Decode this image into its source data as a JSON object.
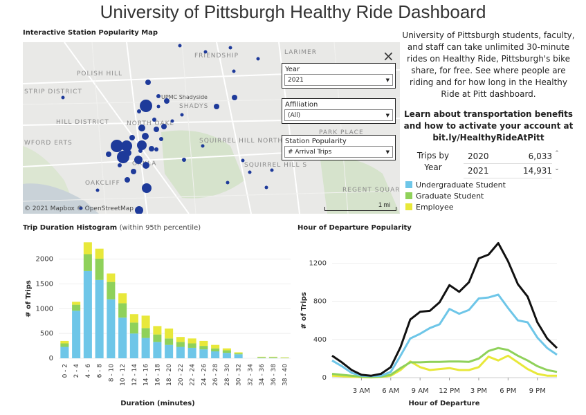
{
  "title": "University of Pittsburgh Healthy Ride Dashboard",
  "map": {
    "section_title": "Interactive Station Popularity Map",
    "place_labels": [
      "FRIENDSHIP",
      "LARIMER",
      "POLISH HILL",
      "STRIP DISTRICT",
      "UPMC Shadyside",
      "SHADYS",
      "HILL DISTRICT",
      "NORTH OAKL",
      "SQUIRREL HILL NORTH",
      "WFORD ERTS",
      "OAKLA",
      "OAKCLIFF",
      "PARK PLACE",
      "SQUIRREL HILL S",
      "REGENT SQUARE"
    ],
    "credit": "© 2021 Mapbox © OpenStreetMap",
    "scale_label": "1 mi",
    "close_icon": "×",
    "filters": [
      {
        "label": "Year",
        "value": "2021"
      },
      {
        "label": "Affiliation",
        "value": "(All)"
      },
      {
        "label": "Station Popularity",
        "value": "# Arrival Trips"
      }
    ]
  },
  "description": "University of Pittsburgh students, faculty, and staff can take unlimited 30-minute rides on Healthy Ride, Pittsburgh's bike share, for free. See where people are riding and for how long in the Healthy Ride at Pitt dashboard.",
  "learn_more": "Learn about transportation benefits and how to activate your account at bit.ly/HealthyRideAtPitt",
  "trips_by_year": {
    "label": "Trips by Year",
    "rows": [
      {
        "year": "2020",
        "value": "6,033"
      },
      {
        "year": "2021",
        "value": "14,931"
      }
    ]
  },
  "legend": [
    {
      "name": "Undergraduate Student",
      "color": "#6ec6e8"
    },
    {
      "name": "Graduate Student",
      "color": "#8fd15a"
    },
    {
      "name": "Employee",
      "color": "#e8e83a"
    }
  ],
  "chart_data": [
    {
      "type": "bar",
      "title": "Trip Duration Histogram",
      "subtitle": "(within 95th percentile)",
      "xlabel": "Duration (minutes)",
      "ylabel": "# of Trips",
      "ylim": [
        0,
        2400
      ],
      "yticks": [
        0,
        500,
        1000,
        1500,
        2000
      ],
      "categories": [
        "0 - 2",
        "2 - 4",
        "4 - 6",
        "6 - 8",
        "8 - 10",
        "10 - 12",
        "12 - 14",
        "14 - 16",
        "16 - 18",
        "18 - 20",
        "20 - 22",
        "22 - 24",
        "24 - 26",
        "26 - 28",
        "28 - 30",
        "30 - 32",
        "32 - 34",
        "34 - 36",
        "36 - 38",
        "38 - 40"
      ],
      "series": [
        {
          "name": "Undergraduate Student",
          "color": "#6ec6e8",
          "values": [
            230,
            960,
            1760,
            1580,
            1190,
            820,
            500,
            410,
            330,
            270,
            230,
            210,
            180,
            140,
            110,
            80,
            0,
            10,
            10,
            5
          ]
        },
        {
          "name": "Graduate Student",
          "color": "#8fd15a",
          "values": [
            70,
            120,
            340,
            430,
            350,
            290,
            220,
            200,
            150,
            130,
            100,
            90,
            70,
            60,
            50,
            20,
            0,
            10,
            10,
            5
          ]
        },
        {
          "name": "Employee",
          "color": "#e8e83a",
          "values": [
            50,
            60,
            240,
            200,
            170,
            200,
            170,
            250,
            170,
            200,
            100,
            100,
            100,
            70,
            40,
            20,
            0,
            10,
            10,
            10
          ]
        }
      ]
    },
    {
      "type": "line",
      "title": "Hour of Departure Popularity",
      "xlabel": "Hour of Departure",
      "ylabel": "# of Trips",
      "ylim": [
        0,
        1450
      ],
      "yticks": [
        0,
        400,
        800,
        1200
      ],
      "xtick_labels": [
        "3 AM",
        "6 AM",
        "9 AM",
        "12 PM",
        "3 PM",
        "6 PM",
        "9 PM"
      ],
      "xtick_hours": [
        3,
        6,
        9,
        12,
        15,
        18,
        21
      ],
      "x": [
        0,
        1,
        2,
        3,
        4,
        5,
        6,
        7,
        8,
        9,
        10,
        11,
        12,
        13,
        14,
        15,
        16,
        17,
        18,
        19,
        20,
        21,
        22,
        23
      ],
      "series": [
        {
          "name": "Total",
          "color": "#111111",
          "values": [
            230,
            160,
            80,
            30,
            20,
            40,
            110,
            320,
            610,
            690,
            700,
            790,
            970,
            900,
            1000,
            1250,
            1290,
            1410,
            1220,
            980,
            850,
            580,
            410,
            310
          ]
        },
        {
          "name": "Undergraduate Student",
          "color": "#6ec6e8",
          "values": [
            180,
            120,
            50,
            20,
            15,
            20,
            60,
            230,
            410,
            460,
            520,
            560,
            720,
            670,
            710,
            830,
            840,
            870,
            730,
            600,
            580,
            420,
            310,
            240
          ]
        },
        {
          "name": "Graduate Student",
          "color": "#8fd15a",
          "values": [
            40,
            30,
            20,
            10,
            5,
            10,
            30,
            100,
            160,
            160,
            165,
            165,
            170,
            170,
            165,
            200,
            280,
            310,
            290,
            230,
            180,
            120,
            80,
            60
          ]
        },
        {
          "name": "Employee",
          "color": "#e8e83a",
          "values": [
            20,
            15,
            10,
            5,
            3,
            8,
            20,
            80,
            170,
            110,
            80,
            90,
            100,
            80,
            80,
            110,
            220,
            180,
            230,
            160,
            90,
            40,
            20,
            20
          ]
        }
      ]
    }
  ]
}
